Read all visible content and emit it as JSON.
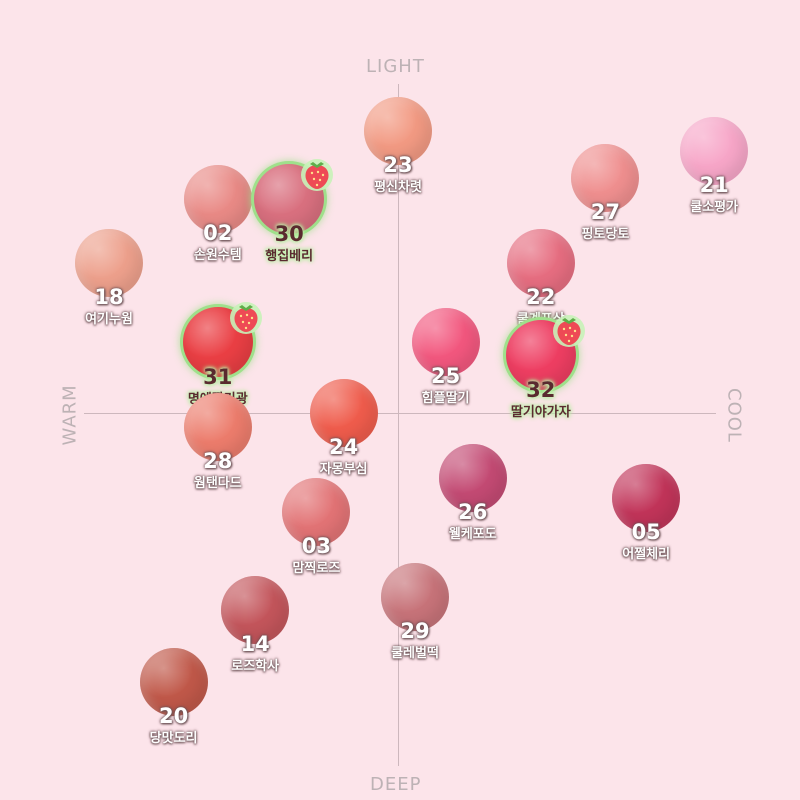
{
  "axes": {
    "top": "LIGHT",
    "bottom": "DEEP",
    "left": "WARM",
    "right": "COOL"
  },
  "chart_data": {
    "type": "scatter",
    "xlabel": "WARM ↔ COOL",
    "ylabel": "DEEP ↔ LIGHT",
    "xlim": [
      -1,
      1
    ],
    "ylim": [
      -1,
      1
    ],
    "grid": false,
    "points": [
      {
        "num": "23",
        "name": "평신차렷",
        "x": 0.0,
        "y": 0.83,
        "color": "#f29a83",
        "highlight": false
      },
      {
        "num": "21",
        "name": "쿨소평가",
        "x": 0.93,
        "y": 0.77,
        "color": "#f7a6c8",
        "highlight": false
      },
      {
        "num": "02",
        "name": "손원수템",
        "x": -0.53,
        "y": 0.63,
        "color": "#e98a86",
        "highlight": false
      },
      {
        "num": "30",
        "name": "행집베리",
        "x": -0.32,
        "y": 0.63,
        "color": "#d9707f",
        "highlight": true
      },
      {
        "num": "27",
        "name": "핑토당토",
        "x": 0.61,
        "y": 0.69,
        "color": "#ef8f8f",
        "highlight": false
      },
      {
        "num": "22",
        "name": "쿨계포상",
        "x": 0.42,
        "y": 0.44,
        "color": "#e66d80",
        "highlight": false
      },
      {
        "num": "18",
        "name": "여기누웜",
        "x": -0.85,
        "y": 0.44,
        "color": "#eda08c",
        "highlight": false
      },
      {
        "num": "31",
        "name": "명예딸기광",
        "x": -0.53,
        "y": 0.21,
        "color": "#ea3f44",
        "highlight": true
      },
      {
        "num": "25",
        "name": "힘플딸기",
        "x": 0.14,
        "y": 0.21,
        "color": "#f2577e",
        "highlight": false
      },
      {
        "num": "32",
        "name": "딸기야가자",
        "x": 0.42,
        "y": 0.17,
        "color": "#ee3e62",
        "highlight": true
      },
      {
        "num": "28",
        "name": "웜탠다드",
        "x": -0.53,
        "y": -0.04,
        "color": "#ec7c6c",
        "highlight": false
      },
      {
        "num": "24",
        "name": "자몽부심",
        "x": -0.16,
        "y": 0.0,
        "color": "#ef5c4c",
        "highlight": false
      },
      {
        "num": "26",
        "name": "웰케포도",
        "x": 0.22,
        "y": -0.19,
        "color": "#c34a73",
        "highlight": false
      },
      {
        "num": "05",
        "name": "어쩔체리",
        "x": 0.73,
        "y": -0.25,
        "color": "#c13459",
        "highlight": false
      },
      {
        "num": "03",
        "name": "맘찍로즈",
        "x": -0.24,
        "y": -0.29,
        "color": "#e27375",
        "highlight": false
      },
      {
        "num": "14",
        "name": "로즈학사",
        "x": -0.42,
        "y": -0.58,
        "color": "#c3555b",
        "highlight": false
      },
      {
        "num": "29",
        "name": "쿨레벌떡",
        "x": 0.05,
        "y": -0.54,
        "color": "#c77379",
        "highlight": false
      },
      {
        "num": "20",
        "name": "당맛도리",
        "x": -0.66,
        "y": -0.79,
        "color": "#c05849",
        "highlight": false
      }
    ]
  },
  "icons": {
    "highlight_badge": "strawberry-icon"
  }
}
